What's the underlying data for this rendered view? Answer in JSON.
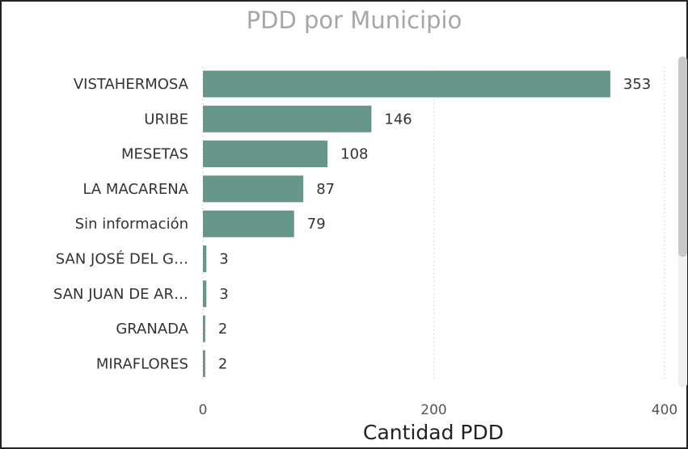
{
  "chart_data": {
    "type": "bar",
    "orientation": "horizontal",
    "title": "PDD por Municipio",
    "x_label": "Cantidad PDD",
    "categories": [
      "VISTAHERMOSA",
      "URIBE",
      "MESETAS",
      "LA MACARENA",
      "Sin información",
      "SAN JOSÉ DEL G…",
      "SAN JUAN DE AR…",
      "GRANADA",
      "MIRAFLORES"
    ],
    "values": [
      353,
      146,
      108,
      87,
      79,
      3,
      3,
      2,
      2
    ],
    "color": "#66958a",
    "xlim": [
      0,
      400
    ],
    "xticks": [
      0,
      200,
      400
    ],
    "grid": true
  }
}
